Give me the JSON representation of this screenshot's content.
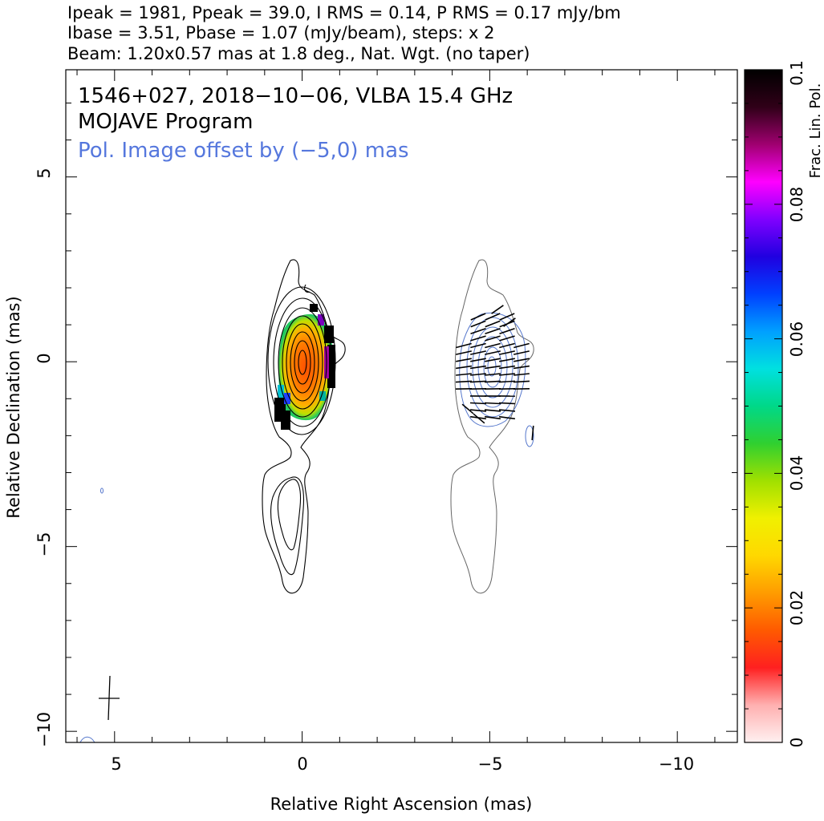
{
  "header": {
    "line1": "Ipeak = 1981, Ppeak = 39.0, I RMS = 0.14, P RMS = 0.17 mJy/bm",
    "line2": "Ibase = 3.51, Pbase = 1.07 (mJy/beam), steps: x 2",
    "line3": "Beam: 1.20x0.57 mas at 1.8 deg., Nat. Wgt. (no taper)"
  },
  "annotations": {
    "source": "1546+027, 2018−10−06, VLBA 15.4 GHz",
    "program": "MOJAVE Program",
    "offset_note": "Pol. Image offset by (−5,0) mas"
  },
  "colors": {
    "total_intensity_contours": "#000000",
    "polarization_contours": "#5577cc",
    "offset_copy_contours": "#666666",
    "annotation_blue": "#5577dd"
  },
  "chart_data": {
    "type": "heatmap",
    "title": "1546+027, 2018−10−06, VLBA 15.4 GHz",
    "xlabel": "Relative Right Ascension (mas)",
    "ylabel": "Relative Declination (mas)",
    "xlim": [
      6.3,
      -11.6
    ],
    "ylim": [
      -10.3,
      7.9
    ],
    "x_ticks": [
      5,
      0,
      -5,
      -10
    ],
    "x_tick_labels": [
      "5",
      "0",
      "−5",
      "−10"
    ],
    "y_ticks": [
      5,
      0,
      -5,
      -10
    ],
    "y_tick_labels": [
      "5",
      "0",
      "−5",
      "−10"
    ],
    "x_axis_reversed": true,
    "grid": false,
    "colorbar": {
      "label": "Frac. Lin. Pol.",
      "min": 0,
      "max": 0.1,
      "ticks": [
        0,
        0.02,
        0.04,
        0.06,
        0.08,
        0.1
      ],
      "tick_labels": [
        "0",
        "0.02",
        "0.04",
        "0.06",
        "0.08",
        "0.1"
      ],
      "colormap": [
        "#fff0f0",
        "#ffb0b0",
        "#ff2020",
        "#ff5a00",
        "#ff9c00",
        "#ffd800",
        "#f0f000",
        "#a0e000",
        "#30d030",
        "#00d888",
        "#00e0e0",
        "#00a0ff",
        "#0040ff",
        "#2000e0",
        "#8000ff",
        "#ff00ff",
        "#a00070",
        "#300018",
        "#000000"
      ]
    },
    "peak_intensity_mJy_per_beam": 1981,
    "peak_polarized_mJy_per_beam": 39.0,
    "I_rms_mJy_per_beam": 0.14,
    "P_rms_mJy_per_beam": 0.17,
    "I_base_mJy_per_beam": 3.51,
    "P_base_mJy_per_beam": 1.07,
    "contour_step_factor": 2,
    "beam": {
      "major_mas": 1.2,
      "minor_mas": 0.57,
      "pa_deg": 1.8
    },
    "weighting": "Nat. Wgt. (no taper)",
    "pol_image_offset_mas": [
      -5,
      0
    ]
  }
}
